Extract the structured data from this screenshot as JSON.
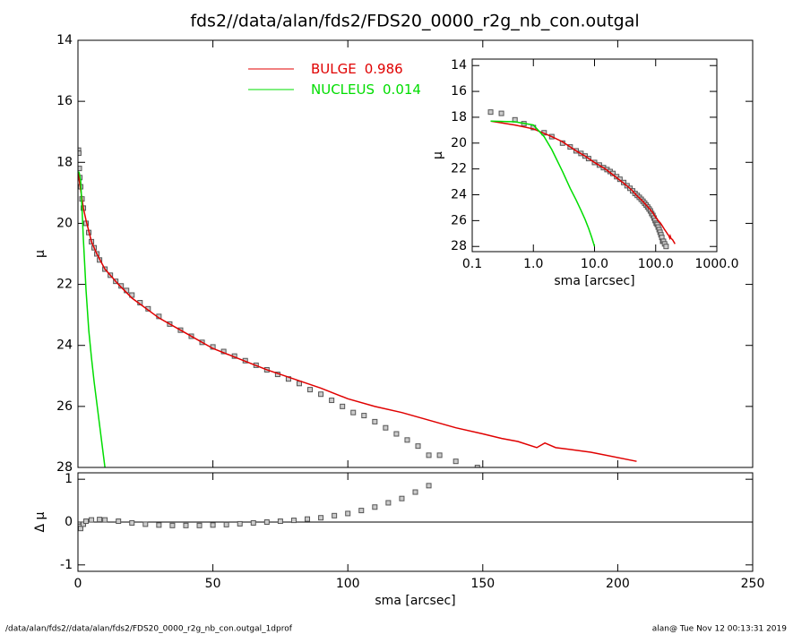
{
  "title": "fds2//data/alan/fds2/FDS20_0000_r2g_nb_con.outgal",
  "footer": {
    "left": "/data/alan/fds2//data/alan/fds2/FDS20_0000_r2g_nb_con.outgal_1dprof",
    "right": "alan@  Tue Nov 12 00:13:31 2019"
  },
  "chart_data": [
    {
      "type": "line",
      "ylabel": "μ",
      "ylim": [
        14,
        28
      ],
      "y_reversed": true,
      "xlim": [
        0,
        250
      ],
      "yticks": [
        14,
        16,
        18,
        20,
        22,
        24,
        26,
        28
      ],
      "legend": "top",
      "series": [
        {
          "color": "#555555",
          "marker": "square",
          "x": [
            0.2,
            0.3,
            0.5,
            0.7,
            1,
            1.5,
            2,
            3,
            4,
            5,
            6,
            7,
            8,
            10,
            12,
            14,
            16,
            18,
            20,
            23,
            26,
            30,
            34,
            38,
            42,
            46,
            50,
            54,
            58,
            62,
            66,
            70,
            74,
            78,
            82,
            86,
            90,
            94,
            98,
            102,
            106,
            110,
            114,
            118,
            122,
            126,
            130,
            134,
            140,
            148
          ],
          "values": [
            17.6,
            17.7,
            18.2,
            18.5,
            18.8,
            19.2,
            19.5,
            20.0,
            20.3,
            20.6,
            20.8,
            21.0,
            21.2,
            21.5,
            21.7,
            21.9,
            22.05,
            22.2,
            22.35,
            22.6,
            22.8,
            23.05,
            23.3,
            23.5,
            23.7,
            23.9,
            24.05,
            24.2,
            24.35,
            24.5,
            24.65,
            24.8,
            24.95,
            25.1,
            25.25,
            25.45,
            25.6,
            25.8,
            26.0,
            26.2,
            26.3,
            26.5,
            26.7,
            26.9,
            27.1,
            27.3,
            27.6,
            27.6,
            27.8,
            28.0
          ]
        },
        {
          "name": "BULGE",
          "fraction": 0.986,
          "color": "#e00000",
          "x": [
            0.2,
            0.5,
            1,
            2,
            3,
            5,
            7,
            10,
            15,
            20,
            30,
            40,
            50,
            60,
            70,
            80,
            90,
            100,
            110,
            120,
            130,
            140,
            150,
            157,
            163,
            170,
            173,
            177,
            190,
            207
          ],
          "values": [
            18.3,
            18.6,
            18.9,
            19.5,
            19.9,
            20.6,
            21.0,
            21.5,
            22.0,
            22.45,
            23.1,
            23.6,
            24.1,
            24.45,
            24.8,
            25.1,
            25.4,
            25.75,
            26.0,
            26.2,
            26.45,
            26.7,
            26.9,
            27.05,
            27.15,
            27.35,
            27.2,
            27.35,
            27.5,
            27.8
          ]
        },
        {
          "name": "NUCLEUS",
          "fraction": 0.014,
          "color": "#00dd00",
          "x": [
            0.2,
            0.5,
            1,
            1.5,
            2,
            3,
            4,
            5,
            6,
            7,
            8,
            9,
            10
          ],
          "values": [
            18.3,
            18.35,
            18.6,
            19.5,
            20.5,
            22.2,
            23.5,
            24.4,
            25.2,
            25.9,
            26.6,
            27.3,
            28.0
          ]
        }
      ]
    },
    {
      "type": "scatter",
      "ylabel": "Δ μ",
      "xlabel": "sma [arcsec]",
      "ylim": [
        -1.15,
        1.15
      ],
      "xlim": [
        0,
        250
      ],
      "yticks": [
        -1,
        0,
        1
      ],
      "xticks": [
        0,
        50,
        100,
        150,
        200,
        250
      ],
      "zero_line": true,
      "series": [
        {
          "color": "#555555",
          "marker": "square",
          "x": [
            0.2,
            0.5,
            1,
            2,
            3,
            5,
            8,
            10,
            15,
            20,
            25,
            30,
            35,
            40,
            45,
            50,
            55,
            60,
            65,
            70,
            75,
            80,
            85,
            90,
            95,
            100,
            105,
            110,
            115,
            120,
            125,
            130
          ],
          "values": [
            -0.05,
            -0.1,
            -0.15,
            -0.05,
            0.02,
            0.05,
            0.06,
            0.05,
            0.02,
            -0.02,
            -0.05,
            -0.07,
            -0.08,
            -0.08,
            -0.08,
            -0.07,
            -0.06,
            -0.04,
            -0.02,
            0.0,
            0.02,
            0.04,
            0.07,
            0.1,
            0.15,
            0.2,
            0.27,
            0.35,
            0.45,
            0.55,
            0.7,
            0.85
          ]
        }
      ]
    },
    {
      "type": "line",
      "ylabel": "μ",
      "xlabel": "sma [arcsec]",
      "xscale": "log",
      "xlim": [
        0.1,
        1000
      ],
      "ylim": [
        13.5,
        28.4
      ],
      "y_reversed": true,
      "yticks": [
        14,
        16,
        18,
        20,
        22,
        24,
        26,
        28
      ],
      "xticks": [
        0.1,
        {
          "value": 1,
          "label": "1.0"
        },
        {
          "value": 10,
          "label": "10.0"
        },
        {
          "value": 100,
          "label": "100.0"
        },
        {
          "value": 1000,
          "label": "1000.0"
        }
      ],
      "series": [
        {
          "color": "#555555",
          "marker": "square",
          "x": [
            0.2,
            0.3,
            0.5,
            0.7,
            1,
            1.5,
            2,
            3,
            4,
            5,
            6,
            7,
            8,
            10,
            12,
            14,
            16,
            18,
            20,
            23,
            26,
            30,
            34,
            38,
            42,
            46,
            50,
            54,
            58,
            62,
            66,
            70,
            74,
            78,
            82,
            86,
            90,
            94,
            98,
            102,
            106,
            110,
            114,
            118,
            122,
            126,
            130,
            134,
            140,
            148
          ],
          "values": [
            17.6,
            17.7,
            18.2,
            18.5,
            18.8,
            19.2,
            19.5,
            20.0,
            20.3,
            20.6,
            20.8,
            21.0,
            21.2,
            21.5,
            21.7,
            21.9,
            22.05,
            22.2,
            22.35,
            22.6,
            22.8,
            23.05,
            23.3,
            23.5,
            23.7,
            23.9,
            24.05,
            24.2,
            24.35,
            24.5,
            24.65,
            24.8,
            24.95,
            25.1,
            25.25,
            25.45,
            25.6,
            25.8,
            26.0,
            26.2,
            26.3,
            26.5,
            26.7,
            26.9,
            27.1,
            27.3,
            27.6,
            27.6,
            27.8,
            28.0
          ]
        },
        {
          "color": "#e00000",
          "x": [
            0.2,
            0.5,
            1,
            2,
            3,
            5,
            7,
            10,
            15,
            20,
            30,
            40,
            50,
            60,
            70,
            80,
            90,
            100,
            110,
            120,
            130,
            140,
            150,
            157,
            163,
            170,
            173,
            177,
            190,
            207
          ],
          "values": [
            18.3,
            18.6,
            18.9,
            19.5,
            19.9,
            20.6,
            21.0,
            21.5,
            22.0,
            22.45,
            23.1,
            23.6,
            24.1,
            24.45,
            24.8,
            25.1,
            25.4,
            25.75,
            26.0,
            26.2,
            26.45,
            26.7,
            26.9,
            27.05,
            27.15,
            27.35,
            27.2,
            27.35,
            27.5,
            27.8
          ]
        },
        {
          "color": "#00dd00",
          "x": [
            0.2,
            0.5,
            1,
            1.5,
            2,
            3,
            4,
            5,
            6,
            7,
            8,
            9,
            10
          ],
          "values": [
            18.3,
            18.35,
            18.6,
            19.5,
            20.5,
            22.2,
            23.5,
            24.4,
            25.2,
            25.9,
            26.6,
            27.3,
            28.0
          ]
        }
      ]
    }
  ]
}
